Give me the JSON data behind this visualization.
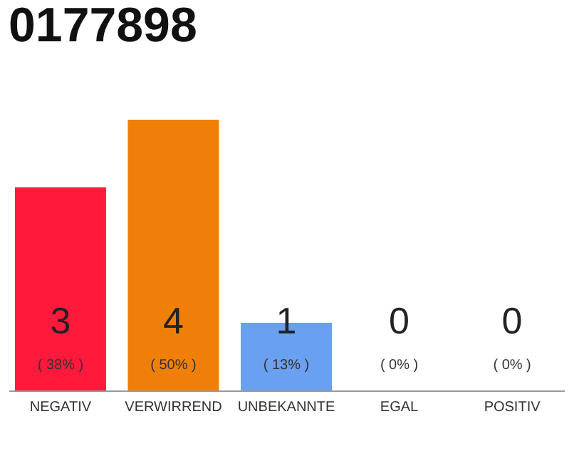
{
  "chart_data": {
    "type": "bar",
    "title": "0177898",
    "categories": [
      "NEGATIV",
      "VERWIRREND",
      "UNBEKANNTE",
      "EGAL",
      "POSITIV"
    ],
    "values": [
      3,
      4,
      1,
      0,
      0
    ],
    "colors": [
      "#ff1a3c",
      "#f07f0a",
      "#6aa0f0",
      "#cccccc",
      "#cccccc"
    ],
    "value_labels": [
      "3",
      "4",
      "1",
      "0",
      "0"
    ],
    "annotations": [
      "( 38% )",
      "( 50% )",
      "( 13% )",
      "( 0% )",
      "( 0% )"
    ],
    "grid": false
  }
}
